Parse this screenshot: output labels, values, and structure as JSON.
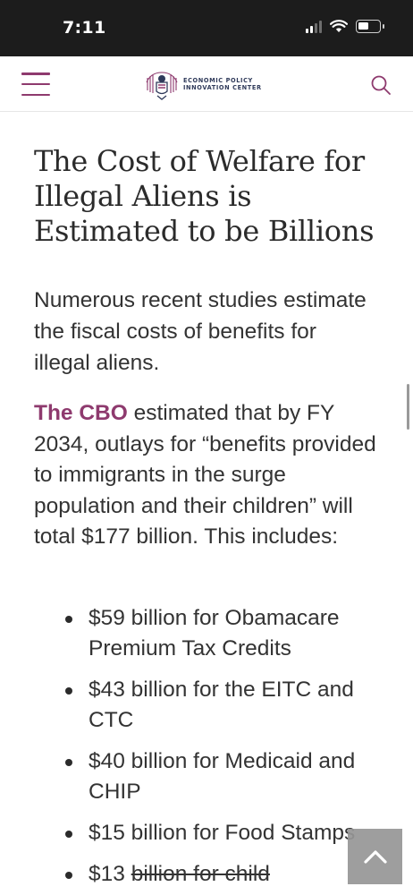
{
  "status_bar": {
    "time": "7:11"
  },
  "header": {
    "logo_line1": "ECONOMIC POLICY",
    "logo_line2": "INNOVATION CENTER",
    "menu_icon": "hamburger-menu-icon",
    "search_icon": "search-icon",
    "accent_color": "#8e3a6e"
  },
  "article": {
    "title": "The Cost of Welfare for Illegal Aliens is Estimated to be Billions",
    "intro": "Numerous recent studies estimate the fiscal costs of benefits for illegal aliens.",
    "cbo_link": "The CBO",
    "cbo_text": " estimated that by FY 2034, outlays for “benefits provided to immigrants in the surge population and their children” will total $177 billion. This includes:",
    "bullets": [
      "$59 billion for Obamacare Premium Tax Credits",
      "$43 billion for the EITC and CTC",
      "$40 billion for Medicaid and CHIP",
      "$15 billion for Food Stamps"
    ],
    "partial_bullet_start": "$13 ",
    "partial_bullet_struck": "billion for child"
  },
  "back_to_top_icon": "chevron-up-icon"
}
